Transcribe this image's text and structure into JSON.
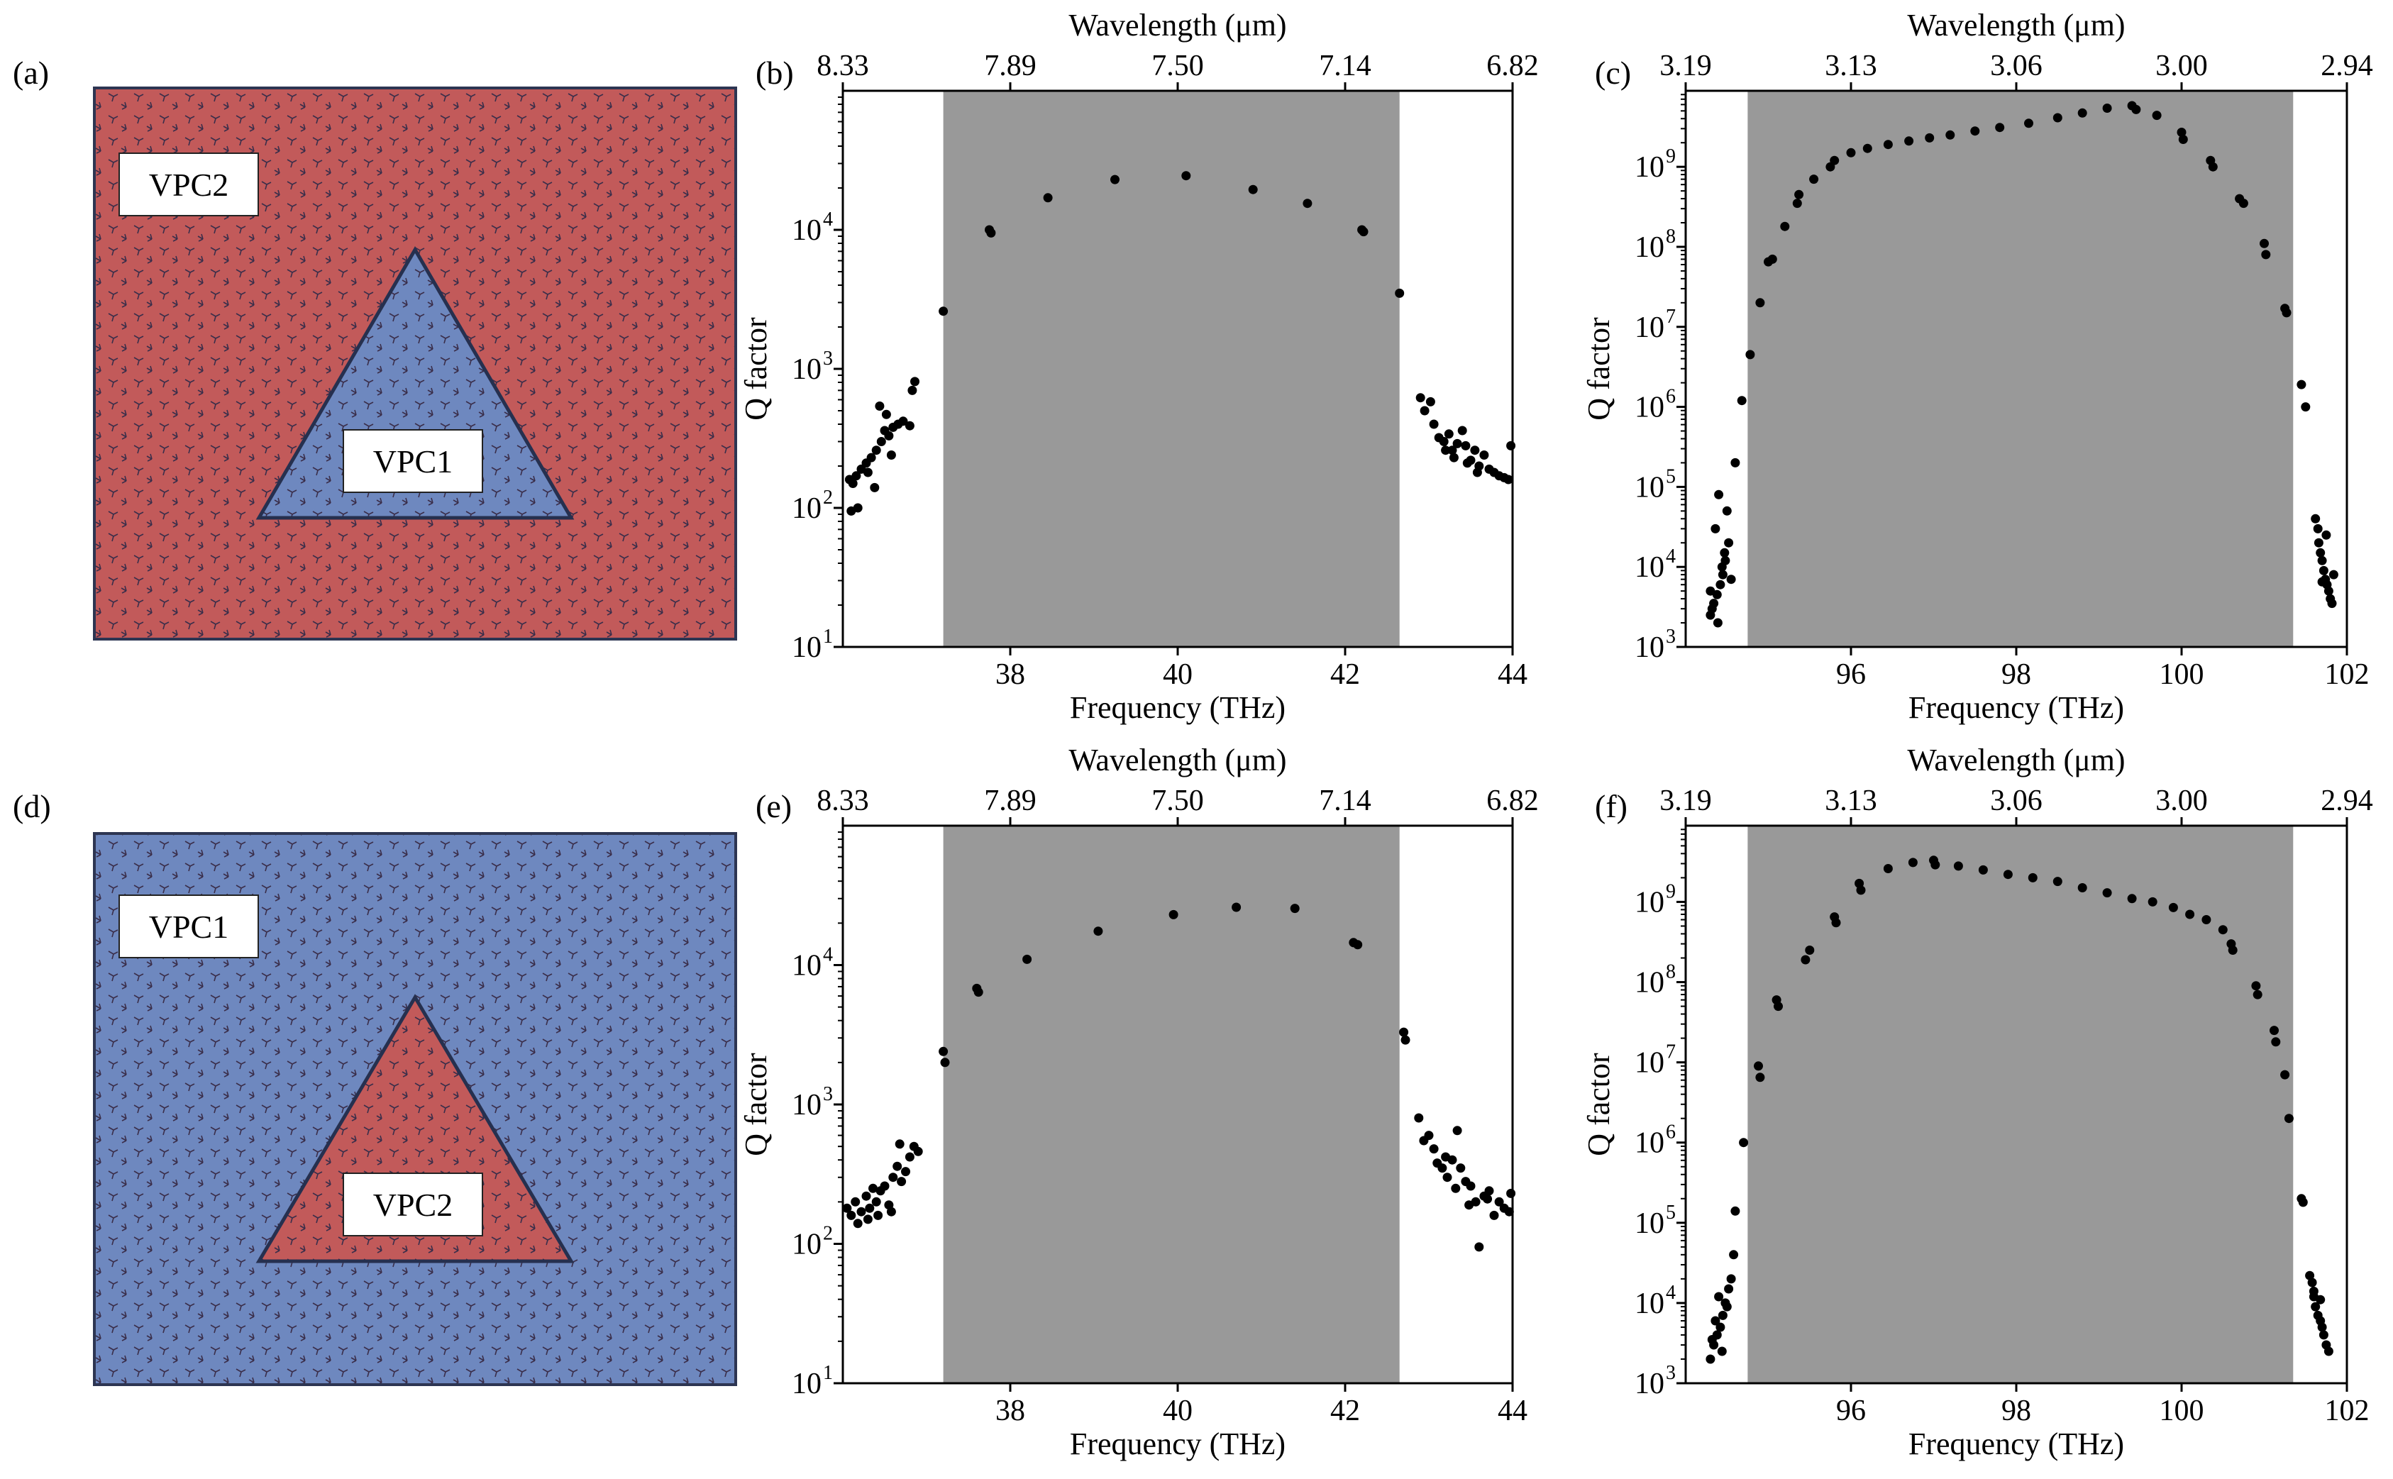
{
  "colors": {
    "vpc_red": "#c25a5a",
    "vpc_blue": "#6e88bf",
    "lattice_line": "#3a2e4a",
    "band_gray": "#999999",
    "point": "#000000"
  },
  "schematics": [
    {
      "label": "(a)",
      "background": "VPC2",
      "triangle": "VPC1",
      "bg_color_key": "vpc_red",
      "tri_color_key": "vpc_blue"
    },
    {
      "label": "(d)",
      "background": "VPC1",
      "triangle": "VPC2",
      "bg_color_key": "vpc_blue",
      "tri_color_key": "vpc_red"
    }
  ],
  "chart_data": [
    {
      "id": "b",
      "label": "(b)",
      "type": "scatter",
      "xlabel": "Frequency (THz)",
      "ylabel": "Q factor",
      "top_xlabel": "Wavelength (μm)",
      "xlim": [
        36,
        44
      ],
      "yscale": "log",
      "ylim_exp": [
        1,
        5
      ],
      "xticks": [
        {
          "v": 38,
          "t": "38"
        },
        {
          "v": 40,
          "t": "40"
        },
        {
          "v": 42,
          "t": "42"
        },
        {
          "v": 44,
          "t": "44"
        }
      ],
      "yticks": [
        {
          "e": 1,
          "t": "10"
        },
        {
          "e": 2,
          "t": "10"
        },
        {
          "e": 3,
          "t": "10"
        },
        {
          "e": 4,
          "t": "10"
        }
      ],
      "top_ticks": [
        {
          "v": 36,
          "t": "8.33"
        },
        {
          "v": 38,
          "t": "7.89"
        },
        {
          "v": 40,
          "t": "7.50"
        },
        {
          "v": 42,
          "t": "7.14"
        },
        {
          "v": 44,
          "t": "6.82"
        }
      ],
      "band": [
        37.2,
        42.65
      ],
      "points": [
        [
          36.08,
          160
        ],
        [
          36.12,
          150
        ],
        [
          36.16,
          170
        ],
        [
          36.1,
          95
        ],
        [
          36.18,
          100
        ],
        [
          36.22,
          190
        ],
        [
          36.28,
          210
        ],
        [
          36.34,
          230
        ],
        [
          36.4,
          260
        ],
        [
          36.3,
          180
        ],
        [
          36.46,
          300
        ],
        [
          36.5,
          360
        ],
        [
          36.55,
          330
        ],
        [
          36.6,
          380
        ],
        [
          36.66,
          400
        ],
        [
          36.72,
          420
        ],
        [
          36.8,
          390
        ],
        [
          36.83,
          700
        ],
        [
          36.86,
          810
        ],
        [
          36.44,
          540
        ],
        [
          36.52,
          470
        ],
        [
          36.58,
          240
        ],
        [
          36.38,
          140
        ],
        [
          37.2,
          2600
        ],
        [
          37.75,
          10000
        ],
        [
          37.77,
          9500
        ],
        [
          38.45,
          17000
        ],
        [
          39.25,
          23000
        ],
        [
          40.1,
          24500
        ],
        [
          40.9,
          19500
        ],
        [
          41.55,
          15500
        ],
        [
          42.2,
          10000
        ],
        [
          42.22,
          9700
        ],
        [
          42.65,
          3500
        ],
        [
          42.9,
          620
        ],
        [
          42.95,
          500
        ],
        [
          43.02,
          580
        ],
        [
          43.06,
          400
        ],
        [
          43.12,
          320
        ],
        [
          43.18,
          300
        ],
        [
          43.24,
          340
        ],
        [
          43.28,
          260
        ],
        [
          43.34,
          290
        ],
        [
          43.4,
          360
        ],
        [
          43.44,
          280
        ],
        [
          43.5,
          220
        ],
        [
          43.55,
          260
        ],
        [
          43.6,
          200
        ],
        [
          43.66,
          240
        ],
        [
          43.72,
          190
        ],
        [
          43.78,
          180
        ],
        [
          43.84,
          170
        ],
        [
          43.9,
          165
        ],
        [
          43.95,
          160
        ],
        [
          43.98,
          280
        ],
        [
          43.2,
          260
        ],
        [
          43.3,
          230
        ],
        [
          43.46,
          210
        ],
        [
          43.58,
          180
        ]
      ]
    },
    {
      "id": "c",
      "label": "(c)",
      "type": "scatter",
      "xlabel": "Frequency (THz)",
      "ylabel": "Q factor",
      "top_xlabel": "Wavelength (μm)",
      "xlim": [
        94,
        102
      ],
      "yscale": "log",
      "ylim_exp": [
        3,
        9.95
      ],
      "xticks": [
        {
          "v": 96,
          "t": "96"
        },
        {
          "v": 98,
          "t": "98"
        },
        {
          "v": 100,
          "t": "100"
        },
        {
          "v": 102,
          "t": "102"
        }
      ],
      "yticks": [
        {
          "e": 3,
          "t": "10"
        },
        {
          "e": 4,
          "t": "10"
        },
        {
          "e": 5,
          "t": "10"
        },
        {
          "e": 6,
          "t": "10"
        },
        {
          "e": 7,
          "t": "10"
        },
        {
          "e": 8,
          "t": "10"
        },
        {
          "e": 9,
          "t": "10"
        }
      ],
      "top_ticks": [
        {
          "v": 94,
          "t": "3.19"
        },
        {
          "v": 96,
          "t": "3.13"
        },
        {
          "v": 98,
          "t": "3.06"
        },
        {
          "v": 100,
          "t": "3.00"
        },
        {
          "v": 102,
          "t": "2.94"
        }
      ],
      "band": [
        94.75,
        101.35
      ],
      "points": [
        [
          94.3,
          2500
        ],
        [
          94.34,
          3500
        ],
        [
          94.38,
          4500
        ],
        [
          94.42,
          6000
        ],
        [
          94.45,
          8000
        ],
        [
          94.48,
          12000
        ],
        [
          94.52,
          20000
        ],
        [
          94.36,
          30000
        ],
        [
          94.4,
          80000
        ],
        [
          94.5,
          50000
        ],
        [
          94.32,
          3000
        ],
        [
          94.44,
          10000
        ],
        [
          94.47,
          15000
        ],
        [
          94.55,
          7000
        ],
        [
          94.3,
          5000
        ],
        [
          94.39,
          2000
        ],
        [
          94.6,
          200000
        ],
        [
          94.68,
          1200000
        ],
        [
          94.78,
          4500000
        ],
        [
          94.9,
          20000000
        ],
        [
          95.0,
          65000000
        ],
        [
          95.05,
          70000000
        ],
        [
          95.2,
          180000000
        ],
        [
          95.35,
          350000000
        ],
        [
          95.37,
          450000000
        ],
        [
          95.55,
          700000000
        ],
        [
          95.75,
          1000000000
        ],
        [
          95.8,
          1200000000
        ],
        [
          96.0,
          1500000000
        ],
        [
          96.2,
          1700000000
        ],
        [
          96.45,
          1900000000
        ],
        [
          96.7,
          2100000000
        ],
        [
          96.95,
          2300000000
        ],
        [
          97.2,
          2500000000
        ],
        [
          97.5,
          2800000000
        ],
        [
          97.8,
          3100000000
        ],
        [
          98.15,
          3500000000
        ],
        [
          98.5,
          4100000000
        ],
        [
          98.8,
          4700000000
        ],
        [
          99.1,
          5400000000
        ],
        [
          99.4,
          5800000000
        ],
        [
          99.45,
          5200000000
        ],
        [
          99.7,
          4400000000
        ],
        [
          100.0,
          2700000000
        ],
        [
          100.02,
          2200000000
        ],
        [
          100.35,
          1200000000
        ],
        [
          100.38,
          1000000000
        ],
        [
          100.7,
          400000000
        ],
        [
          100.75,
          350000000
        ],
        [
          101.0,
          110000000
        ],
        [
          101.02,
          80000000
        ],
        [
          101.25,
          17000000
        ],
        [
          101.27,
          15000000
        ],
        [
          101.45,
          1900000
        ],
        [
          101.5,
          1000000
        ],
        [
          101.62,
          40000
        ],
        [
          101.65,
          30000
        ],
        [
          101.66,
          20000
        ],
        [
          101.68,
          15000
        ],
        [
          101.7,
          12000
        ],
        [
          101.72,
          9000
        ],
        [
          101.74,
          7000
        ],
        [
          101.76,
          6000
        ],
        [
          101.78,
          5000
        ],
        [
          101.8,
          4000
        ],
        [
          101.82,
          3500
        ],
        [
          101.84,
          8000
        ],
        [
          101.7,
          6500
        ],
        [
          101.75,
          25000
        ]
      ]
    },
    {
      "id": "e",
      "label": "(e)",
      "type": "scatter",
      "xlabel": "Frequency (THz)",
      "ylabel": "Q factor",
      "top_xlabel": "Wavelength (μm)",
      "xlim": [
        36,
        44
      ],
      "yscale": "log",
      "ylim_exp": [
        1,
        5
      ],
      "xticks": [
        {
          "v": 38,
          "t": "38"
        },
        {
          "v": 40,
          "t": "40"
        },
        {
          "v": 42,
          "t": "42"
        },
        {
          "v": 44,
          "t": "44"
        }
      ],
      "yticks": [
        {
          "e": 1,
          "t": "10"
        },
        {
          "e": 2,
          "t": "10"
        },
        {
          "e": 3,
          "t": "10"
        },
        {
          "e": 4,
          "t": "10"
        }
      ],
      "top_ticks": [
        {
          "v": 36,
          "t": "8.33"
        },
        {
          "v": 38,
          "t": "7.89"
        },
        {
          "v": 40,
          "t": "7.50"
        },
        {
          "v": 42,
          "t": "7.14"
        },
        {
          "v": 44,
          "t": "6.82"
        }
      ],
      "band": [
        37.2,
        42.65
      ],
      "points": [
        [
          36.05,
          180
        ],
        [
          36.1,
          160
        ],
        [
          36.15,
          200
        ],
        [
          36.18,
          140
        ],
        [
          36.22,
          170
        ],
        [
          36.28,
          220
        ],
        [
          36.32,
          180
        ],
        [
          36.36,
          250
        ],
        [
          36.4,
          200
        ],
        [
          36.45,
          240
        ],
        [
          36.5,
          260
        ],
        [
          36.55,
          190
        ],
        [
          36.6,
          300
        ],
        [
          36.65,
          360
        ],
        [
          36.7,
          280
        ],
        [
          36.75,
          330
        ],
        [
          36.8,
          420
        ],
        [
          36.85,
          500
        ],
        [
          36.9,
          460
        ],
        [
          36.3,
          150
        ],
        [
          36.42,
          160
        ],
        [
          36.58,
          170
        ],
        [
          36.68,
          520
        ],
        [
          37.2,
          2400
        ],
        [
          37.22,
          2000
        ],
        [
          37.6,
          6800
        ],
        [
          37.62,
          6400
        ],
        [
          38.2,
          11000
        ],
        [
          39.05,
          17500
        ],
        [
          39.95,
          23000
        ],
        [
          40.7,
          26000
        ],
        [
          41.4,
          25500
        ],
        [
          42.1,
          14500
        ],
        [
          42.15,
          14000
        ],
        [
          42.7,
          3300
        ],
        [
          42.72,
          2900
        ],
        [
          42.88,
          800
        ],
        [
          42.94,
          550
        ],
        [
          43.0,
          600
        ],
        [
          43.06,
          480
        ],
        [
          43.1,
          380
        ],
        [
          43.16,
          350
        ],
        [
          43.22,
          300
        ],
        [
          43.28,
          400
        ],
        [
          43.34,
          650
        ],
        [
          43.38,
          350
        ],
        [
          43.44,
          280
        ],
        [
          43.5,
          260
        ],
        [
          43.56,
          200
        ],
        [
          43.6,
          95
        ],
        [
          43.66,
          220
        ],
        [
          43.72,
          240
        ],
        [
          43.78,
          160
        ],
        [
          43.84,
          200
        ],
        [
          43.9,
          180
        ],
        [
          43.96,
          170
        ],
        [
          43.98,
          230
        ],
        [
          43.2,
          420
        ],
        [
          43.32,
          250
        ],
        [
          43.48,
          190
        ],
        [
          43.7,
          210
        ]
      ]
    },
    {
      "id": "f",
      "label": "(f)",
      "type": "scatter",
      "xlabel": "Frequency (THz)",
      "ylabel": "Q factor",
      "top_xlabel": "Wavelength (μm)",
      "xlim": [
        94,
        102
      ],
      "yscale": "log",
      "ylim_exp": [
        3,
        9.95
      ],
      "xticks": [
        {
          "v": 96,
          "t": "96"
        },
        {
          "v": 98,
          "t": "98"
        },
        {
          "v": 100,
          "t": "100"
        },
        {
          "v": 102,
          "t": "102"
        }
      ],
      "yticks": [
        {
          "e": 3,
          "t": "10"
        },
        {
          "e": 4,
          "t": "10"
        },
        {
          "e": 5,
          "t": "10"
        },
        {
          "e": 6,
          "t": "10"
        },
        {
          "e": 7,
          "t": "10"
        },
        {
          "e": 8,
          "t": "10"
        },
        {
          "e": 9,
          "t": "10"
        }
      ],
      "top_ticks": [
        {
          "v": 94,
          "t": "3.19"
        },
        {
          "v": 96,
          "t": "3.13"
        },
        {
          "v": 98,
          "t": "3.06"
        },
        {
          "v": 100,
          "t": "3.00"
        },
        {
          "v": 102,
          "t": "2.94"
        }
      ],
      "band": [
        94.75,
        101.35
      ],
      "points": [
        [
          94.3,
          2000
        ],
        [
          94.34,
          3000
        ],
        [
          94.38,
          4000
        ],
        [
          94.42,
          5000
        ],
        [
          94.45,
          7000
        ],
        [
          94.48,
          10000
        ],
        [
          94.52,
          15000
        ],
        [
          94.55,
          20000
        ],
        [
          94.36,
          6000
        ],
        [
          94.4,
          12000
        ],
        [
          94.5,
          9000
        ],
        [
          94.32,
          3500
        ],
        [
          94.44,
          2500
        ],
        [
          94.58,
          40000
        ],
        [
          94.6,
          140000
        ],
        [
          94.7,
          1000000
        ],
        [
          94.88,
          9000000
        ],
        [
          94.9,
          6500000
        ],
        [
          95.1,
          60000000
        ],
        [
          95.12,
          50000000
        ],
        [
          95.45,
          190000000
        ],
        [
          95.5,
          250000000
        ],
        [
          95.8,
          650000000
        ],
        [
          95.82,
          550000000
        ],
        [
          96.1,
          1700000000
        ],
        [
          96.12,
          1400000000
        ],
        [
          96.45,
          2600000000
        ],
        [
          96.75,
          3100000000
        ],
        [
          97.0,
          3300000000
        ],
        [
          97.02,
          2900000000
        ],
        [
          97.3,
          2800000000
        ],
        [
          97.6,
          2500000000
        ],
        [
          97.9,
          2200000000
        ],
        [
          98.2,
          2000000000
        ],
        [
          98.5,
          1800000000
        ],
        [
          98.8,
          1500000000
        ],
        [
          99.1,
          1300000000
        ],
        [
          99.4,
          1100000000
        ],
        [
          99.65,
          1000000000
        ],
        [
          99.9,
          850000000
        ],
        [
          100.1,
          700000000
        ],
        [
          100.3,
          600000000
        ],
        [
          100.5,
          450000000
        ],
        [
          100.6,
          300000000
        ],
        [
          100.62,
          250000000
        ],
        [
          100.9,
          90000000
        ],
        [
          100.92,
          70000000
        ],
        [
          101.12,
          25000000
        ],
        [
          101.14,
          18000000
        ],
        [
          101.25,
          7000000
        ],
        [
          101.3,
          2000000
        ],
        [
          101.45,
          200000
        ],
        [
          101.47,
          180000
        ],
        [
          101.55,
          22000
        ],
        [
          101.58,
          18000
        ],
        [
          101.6,
          12000
        ],
        [
          101.62,
          9000
        ],
        [
          101.65,
          7000
        ],
        [
          101.68,
          6000
        ],
        [
          101.7,
          5000
        ],
        [
          101.72,
          4000
        ],
        [
          101.75,
          3000
        ],
        [
          101.78,
          2500
        ],
        [
          101.6,
          14000
        ],
        [
          101.68,
          11000
        ]
      ]
    }
  ]
}
